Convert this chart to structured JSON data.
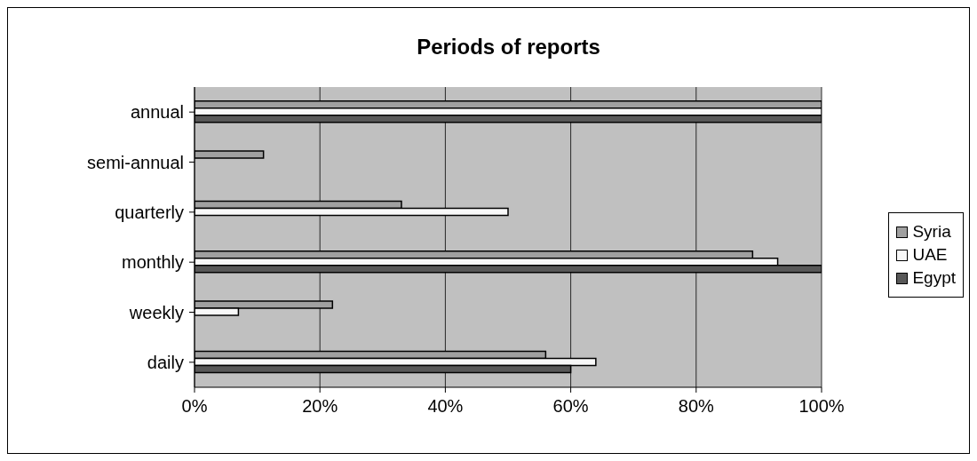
{
  "chart_data": {
    "type": "bar",
    "title": "Periods of reports",
    "orientation": "horizontal",
    "categories": [
      "annual",
      "semi-annual",
      "quarterly",
      "monthly",
      "weekly",
      "daily"
    ],
    "series": [
      {
        "name": "Syria",
        "color": "#a0a0a0",
        "values": [
          100,
          11,
          33,
          89,
          22,
          56
        ]
      },
      {
        "name": "UAE",
        "color": "#f8f8f8",
        "values": [
          100,
          null,
          50,
          93,
          7,
          64
        ]
      },
      {
        "name": "Egypt",
        "color": "#585858",
        "values": [
          100,
          null,
          null,
          100,
          null,
          60
        ]
      }
    ],
    "xlim": [
      0,
      100
    ],
    "xticks": [
      {
        "value": 0,
        "label": "0%"
      },
      {
        "value": 20,
        "label": "20%"
      },
      {
        "value": 40,
        "label": "40%"
      },
      {
        "value": 60,
        "label": "60%"
      },
      {
        "value": 80,
        "label": "80%"
      },
      {
        "value": 100,
        "label": "100%"
      }
    ],
    "grid": "x",
    "legend": "right"
  }
}
